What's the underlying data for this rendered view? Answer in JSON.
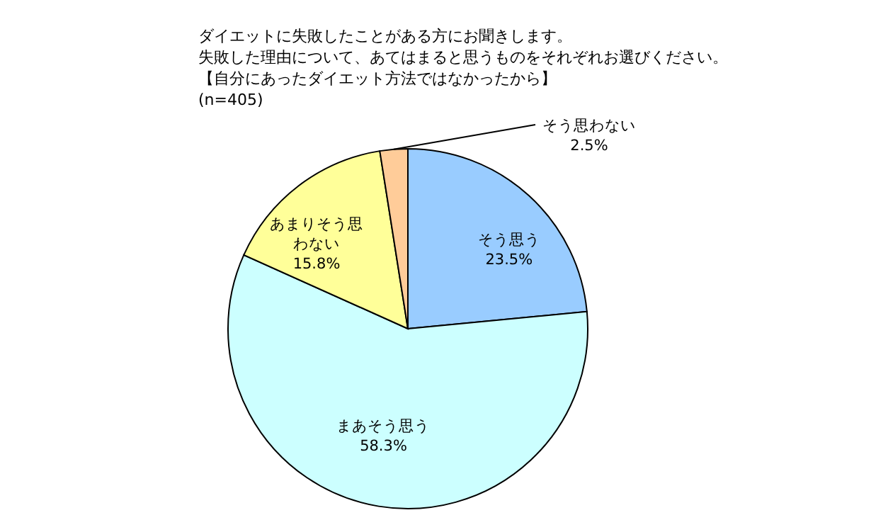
{
  "chart_data": {
    "type": "pie",
    "title": "ダイエットに失敗したことがある方にお聞きします。",
    "subtitle": "失敗した理由について、あてはまると思うものをそれぞれお選びください。",
    "annotations": [
      "【自分にあったダイエット方法ではなかったから】",
      "(n=405)"
    ],
    "categories": [
      "そう思う",
      "まあそう思う",
      "あまりそう思わない",
      "そう思わない"
    ],
    "values": [
      23.5,
      58.3,
      15.8,
      2.5
    ],
    "value_labels": [
      "23.5%",
      "58.3%",
      "15.8%",
      "2.5%"
    ],
    "colors": [
      "#99ccff",
      "#ccffff",
      "#ffff99",
      "#ffcc99"
    ],
    "legend": false
  }
}
